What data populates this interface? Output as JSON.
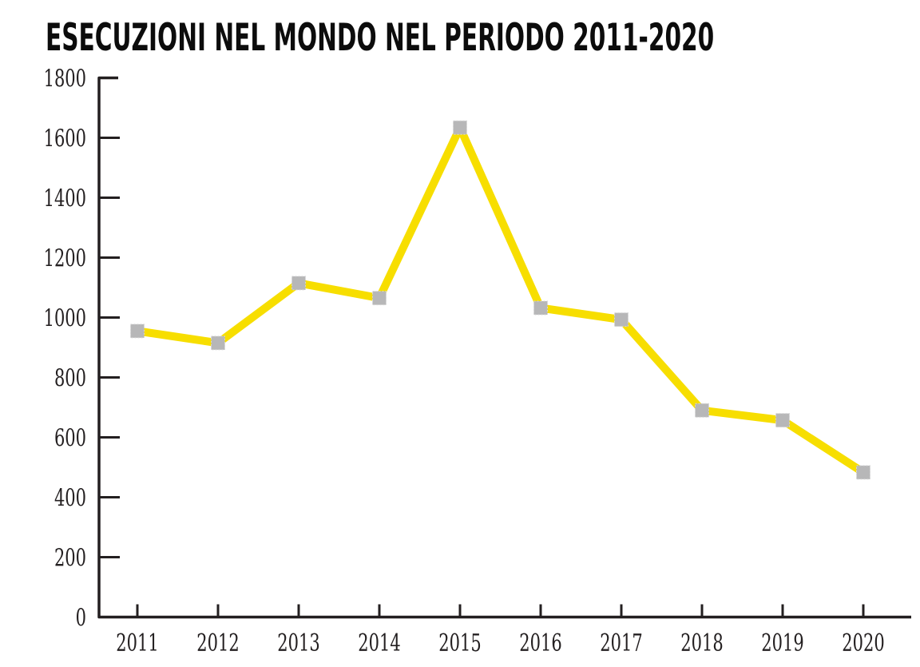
{
  "header": {
    "title": "ESECUZIONI NEL MONDO NEL PERIODO 2011-2020"
  },
  "chart_data": {
    "type": "line",
    "title": "ESECUZIONI NEL MONDO NEL PERIODO 2011-2020",
    "categories": [
      "2011",
      "2012",
      "2013",
      "2014",
      "2015",
      "2016",
      "2017",
      "2018",
      "2019",
      "2020"
    ],
    "values": [
      955,
      915,
      1115,
      1065,
      1634,
      1032,
      993,
      690,
      657,
      483
    ],
    "xlabel": "",
    "ylabel": "",
    "ylim": [
      0,
      1800
    ],
    "ytick_interval": 200,
    "yticks": [
      0,
      200,
      400,
      600,
      800,
      1000,
      1200,
      1400,
      1600,
      1800
    ],
    "grid": false,
    "legend_position": "none",
    "marker_shape": "square",
    "colors": {
      "line": "#f7de00",
      "marker": "#b7b7b8",
      "marker_edge": "#d6d6d6",
      "axis": "#231f20",
      "tick_text": "#231f20",
      "title_text": "#0c0c0c",
      "background": "#ffffff"
    }
  }
}
